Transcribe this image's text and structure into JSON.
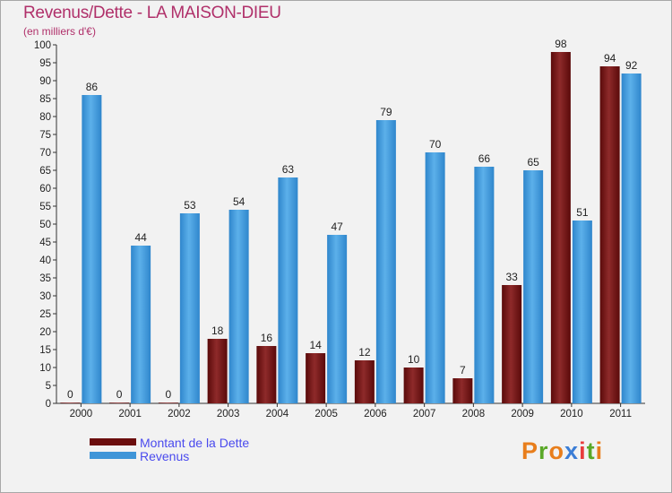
{
  "header": {
    "title": "Revenus/Dette - LA MAISON-DIEU",
    "subtitle": "(en milliers d'€)"
  },
  "chart_data": {
    "type": "bar",
    "categories": [
      "2000",
      "2001",
      "2002",
      "2003",
      "2004",
      "2005",
      "2006",
      "2007",
      "2008",
      "2009",
      "2010",
      "2011"
    ],
    "series": [
      {
        "name": "Montant de la Dette",
        "values": [
          0,
          0,
          0,
          18,
          16,
          14,
          12,
          10,
          7,
          33,
          98,
          94
        ],
        "color": "#7a1a1a"
      },
      {
        "name": "Revenus",
        "values": [
          86,
          44,
          53,
          54,
          63,
          47,
          79,
          70,
          66,
          65,
          51,
          92
        ],
        "color": "#4aa0dc"
      }
    ],
    "ylim": [
      0,
      100
    ],
    "ytick_step": 5,
    "grid": false,
    "legend": "bottom-left"
  },
  "legend": {
    "items": [
      {
        "label": "Montant de la Dette",
        "color": "#6b0e0e"
      },
      {
        "label": "Revenus",
        "color": "#3f95d8"
      }
    ]
  },
  "logo": {
    "letters": [
      "P",
      "r",
      "o",
      "x",
      "i",
      "t",
      "i"
    ],
    "colors": [
      "#e87e1c",
      "#5aa828",
      "#e87e1c",
      "#3b7ed6",
      "#e83c3c",
      "#5aa828",
      "#e87e1c"
    ]
  }
}
